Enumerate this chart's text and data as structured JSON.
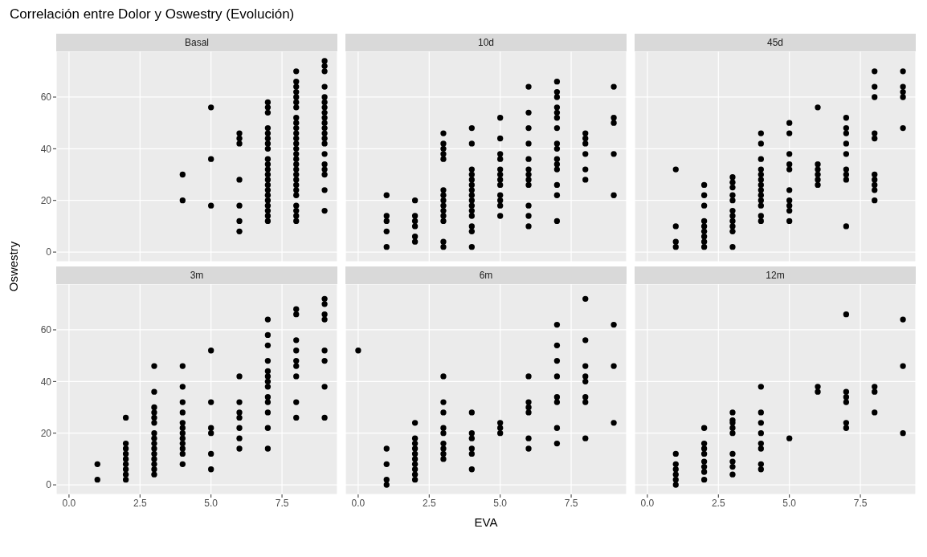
{
  "chart_data": [
    {
      "type": "scatter",
      "title": "Basal",
      "annotations": [
        "Correlación entre Dolor y Oswestry (Evolución)"
      ],
      "ylabel": "Oswestry",
      "marker": "circle",
      "grid": true,
      "tick_labels": "y",
      "xlim": [
        -0.45,
        9.45
      ],
      "xticks": [
        0,
        2.5,
        5,
        7.5
      ],
      "ylim": [
        -3.7,
        77.7
      ],
      "yticks": [
        0,
        20,
        40,
        60
      ],
      "series": [
        {
          "color": "#000000",
          "x": [
            4,
            4,
            5,
            5,
            5,
            6,
            6,
            6,
            6,
            6,
            6,
            6,
            7,
            7,
            7,
            7,
            7,
            7,
            7,
            7,
            7,
            7,
            7,
            7,
            7,
            7,
            7,
            7,
            7,
            7,
            7,
            7,
            7,
            8,
            8,
            8,
            8,
            8,
            8,
            8,
            8,
            8,
            8,
            8,
            8,
            8,
            8,
            8,
            8,
            8,
            8,
            8,
            8,
            8,
            8,
            8,
            8,
            8,
            8,
            8,
            9,
            9,
            9,
            9,
            9,
            9,
            9,
            9,
            9,
            9,
            9,
            9,
            9,
            9,
            9,
            9,
            9,
            9,
            9,
            9
          ],
          "values": [
            30,
            20,
            56,
            36,
            18,
            46,
            44,
            42,
            28,
            18,
            12,
            8,
            58,
            56,
            54,
            48,
            46,
            44,
            42,
            40,
            36,
            34,
            32,
            30,
            28,
            26,
            24,
            22,
            20,
            18,
            16,
            14,
            12,
            70,
            66,
            64,
            62,
            60,
            58,
            56,
            52,
            50,
            48,
            46,
            44,
            42,
            40,
            38,
            36,
            34,
            32,
            30,
            28,
            26,
            24,
            22,
            18,
            16,
            14,
            12,
            74,
            72,
            70,
            64,
            60,
            58,
            56,
            54,
            52,
            50,
            48,
            46,
            44,
            42,
            38,
            34,
            32,
            30,
            24,
            16
          ]
        }
      ]
    },
    {
      "type": "scatter",
      "title": "10d",
      "marker": "circle",
      "grid": true,
      "tick_labels": false,
      "xlim": [
        -0.45,
        9.45
      ],
      "xticks": [
        0,
        2.5,
        5,
        7.5
      ],
      "ylim": [
        -3.7,
        77.7
      ],
      "yticks": [
        0,
        20,
        40,
        60
      ],
      "series": [
        {
          "color": "#000000",
          "x": [
            1,
            1,
            1,
            1,
            1,
            2,
            2,
            2,
            2,
            2,
            2,
            3,
            3,
            3,
            3,
            3,
            3,
            3,
            3,
            3,
            3,
            3,
            3,
            3,
            3,
            4,
            4,
            4,
            4,
            4,
            4,
            4,
            4,
            4,
            4,
            4,
            4,
            4,
            4,
            4,
            5,
            5,
            5,
            5,
            5,
            5,
            5,
            5,
            5,
            5,
            5,
            5,
            6,
            6,
            6,
            6,
            6,
            6,
            6,
            6,
            6,
            6,
            6,
            6,
            7,
            7,
            7,
            7,
            7,
            7,
            7,
            7,
            7,
            7,
            7,
            7,
            7,
            7,
            7,
            8,
            8,
            8,
            8,
            8,
            8,
            9,
            9,
            9,
            9,
            9
          ],
          "values": [
            22,
            14,
            12,
            8,
            2,
            20,
            14,
            12,
            10,
            6,
            4,
            46,
            42,
            40,
            38,
            36,
            24,
            22,
            20,
            18,
            16,
            14,
            12,
            4,
            2,
            48,
            42,
            32,
            30,
            28,
            26,
            24,
            22,
            20,
            18,
            16,
            14,
            10,
            8,
            2,
            52,
            44,
            38,
            36,
            32,
            30,
            28,
            26,
            22,
            20,
            18,
            14,
            64,
            54,
            48,
            42,
            36,
            32,
            30,
            28,
            26,
            18,
            14,
            10,
            66,
            62,
            60,
            56,
            54,
            52,
            48,
            42,
            40,
            36,
            34,
            32,
            26,
            22,
            12,
            46,
            44,
            42,
            38,
            32,
            28,
            64,
            52,
            50,
            38,
            22
          ]
        }
      ]
    },
    {
      "type": "scatter",
      "title": "45d",
      "marker": "circle",
      "grid": true,
      "tick_labels": false,
      "xlim": [
        -0.45,
        9.45
      ],
      "xticks": [
        0,
        2.5,
        5,
        7.5
      ],
      "ylim": [
        -3.7,
        77.7
      ],
      "yticks": [
        0,
        20,
        40,
        60
      ],
      "series": [
        {
          "color": "#000000",
          "x": [
            1,
            1,
            1,
            1,
            2,
            2,
            2,
            2,
            2,
            2,
            2,
            2,
            2,
            3,
            3,
            3,
            3,
            3,
            3,
            3,
            3,
            3,
            3,
            3,
            4,
            4,
            4,
            4,
            4,
            4,
            4,
            4,
            4,
            4,
            4,
            4,
            4,
            5,
            5,
            5,
            5,
            5,
            5,
            5,
            5,
            5,
            5,
            6,
            6,
            6,
            6,
            6,
            6,
            7,
            7,
            7,
            7,
            7,
            7,
            7,
            7,
            7,
            8,
            8,
            8,
            8,
            8,
            8,
            8,
            8,
            8,
            8,
            9,
            9,
            9,
            9,
            9
          ],
          "values": [
            32,
            10,
            4,
            2,
            26,
            22,
            18,
            12,
            10,
            8,
            6,
            4,
            2,
            29,
            27,
            25,
            22,
            20,
            16,
            14,
            12,
            10,
            8,
            2,
            46,
            42,
            36,
            32,
            30,
            28,
            26,
            24,
            22,
            20,
            18,
            14,
            12,
            50,
            46,
            38,
            34,
            32,
            24,
            20,
            18,
            16,
            12,
            56,
            34,
            32,
            30,
            28,
            26,
            52,
            48,
            46,
            42,
            38,
            32,
            30,
            28,
            10,
            70,
            64,
            60,
            46,
            44,
            30,
            28,
            26,
            24,
            20,
            70,
            64,
            62,
            60,
            48
          ]
        }
      ]
    },
    {
      "type": "scatter",
      "title": "3m",
      "marker": "circle",
      "grid": true,
      "xlim": [
        -0.45,
        9.45
      ],
      "xticks": [
        {
          "value": 0,
          "label": "0.0"
        },
        {
          "value": 2.5,
          "label": "2.5"
        },
        {
          "value": 5,
          "label": "5.0"
        },
        {
          "value": 7.5,
          "label": "7.5"
        }
      ],
      "ylim": [
        -3.7,
        77.7
      ],
      "yticks": [
        0,
        20,
        40,
        60
      ],
      "series": [
        {
          "color": "#000000",
          "x": [
            1,
            1,
            2,
            2,
            2,
            2,
            2,
            2,
            2,
            2,
            2,
            3,
            3,
            3,
            3,
            3,
            3,
            3,
            3,
            3,
            3,
            3,
            3,
            3,
            3,
            3,
            4,
            4,
            4,
            4,
            4,
            4,
            4,
            4,
            4,
            4,
            4,
            4,
            5,
            5,
            5,
            5,
            5,
            5,
            6,
            6,
            6,
            6,
            6,
            6,
            6,
            7,
            7,
            7,
            7,
            7,
            7,
            7,
            7,
            7,
            7,
            7,
            7,
            7,
            8,
            8,
            8,
            8,
            8,
            8,
            8,
            8,
            8,
            9,
            9,
            9,
            9,
            9,
            9,
            9,
            9
          ],
          "values": [
            8,
            2,
            26,
            16,
            14,
            12,
            10,
            8,
            6,
            4,
            2,
            46,
            36,
            30,
            28,
            26,
            24,
            20,
            18,
            16,
            14,
            12,
            10,
            8,
            6,
            4,
            46,
            38,
            32,
            28,
            24,
            22,
            20,
            18,
            16,
            14,
            12,
            8,
            52,
            32,
            22,
            20,
            12,
            6,
            42,
            32,
            28,
            26,
            22,
            18,
            14,
            64,
            58,
            54,
            48,
            44,
            42,
            40,
            38,
            34,
            32,
            28,
            22,
            14,
            68,
            66,
            56,
            52,
            48,
            46,
            42,
            32,
            26,
            72,
            70,
            66,
            64,
            52,
            48,
            38,
            26
          ]
        }
      ]
    },
    {
      "type": "scatter",
      "title": "6m",
      "xlabel": "EVA",
      "marker": "circle",
      "grid": true,
      "tick_labels": "x",
      "xlim": [
        -0.45,
        9.45
      ],
      "xticks": [
        {
          "value": 0,
          "label": "0.0"
        },
        {
          "value": 2.5,
          "label": "2.5"
        },
        {
          "value": 5,
          "label": "5.0"
        },
        {
          "value": 7.5,
          "label": "7.5"
        }
      ],
      "ylim": [
        -3.7,
        77.7
      ],
      "yticks": [
        0,
        20,
        40,
        60
      ],
      "series": [
        {
          "color": "#000000",
          "x": [
            0,
            1,
            1,
            1,
            1,
            2,
            2,
            2,
            2,
            2,
            2,
            2,
            2,
            2,
            2,
            3,
            3,
            3,
            3,
            3,
            3,
            3,
            3,
            3,
            4,
            4,
            4,
            4,
            4,
            4,
            5,
            5,
            5,
            6,
            6,
            6,
            6,
            6,
            6,
            7,
            7,
            7,
            7,
            7,
            7,
            7,
            7,
            8,
            8,
            8,
            8,
            8,
            8,
            8,
            8,
            9,
            9,
            9
          ],
          "values": [
            52,
            14,
            8,
            2,
            0,
            24,
            18,
            16,
            14,
            12,
            10,
            8,
            6,
            4,
            2,
            42,
            32,
            28,
            22,
            20,
            16,
            14,
            12,
            10,
            28,
            20,
            18,
            14,
            12,
            6,
            24,
            22,
            20,
            42,
            32,
            30,
            28,
            18,
            14,
            62,
            54,
            48,
            42,
            34,
            32,
            22,
            16,
            72,
            56,
            46,
            42,
            40,
            34,
            32,
            18,
            62,
            46,
            24
          ]
        }
      ]
    },
    {
      "type": "scatter",
      "title": "12m",
      "marker": "circle",
      "grid": true,
      "tick_labels": "x",
      "xlim": [
        -0.45,
        9.45
      ],
      "xticks": [
        {
          "value": 0,
          "label": "0.0"
        },
        {
          "value": 2.5,
          "label": "2.5"
        },
        {
          "value": 5,
          "label": "5.0"
        },
        {
          "value": 7.5,
          "label": "7.5"
        }
      ],
      "ylim": [
        -3.7,
        77.7
      ],
      "yticks": [
        0,
        20,
        40,
        60
      ],
      "series": [
        {
          "color": "#000000",
          "x": [
            1,
            1,
            1,
            1,
            1,
            1,
            2,
            2,
            2,
            2,
            2,
            2,
            2,
            2,
            3,
            3,
            3,
            3,
            3,
            3,
            3,
            3,
            3,
            4,
            4,
            4,
            4,
            4,
            4,
            4,
            4,
            5,
            6,
            6,
            7,
            7,
            7,
            7,
            7,
            7,
            8,
            8,
            8,
            9,
            9,
            9
          ],
          "values": [
            12,
            8,
            6,
            4,
            2,
            0,
            22,
            16,
            14,
            12,
            9,
            7,
            5,
            2,
            28,
            25,
            24,
            22,
            20,
            12,
            9,
            7,
            4,
            38,
            28,
            24,
            20,
            16,
            14,
            8,
            6,
            18,
            38,
            36,
            66,
            36,
            34,
            32,
            24,
            22,
            38,
            36,
            28,
            64,
            46,
            20
          ]
        }
      ]
    }
  ]
}
